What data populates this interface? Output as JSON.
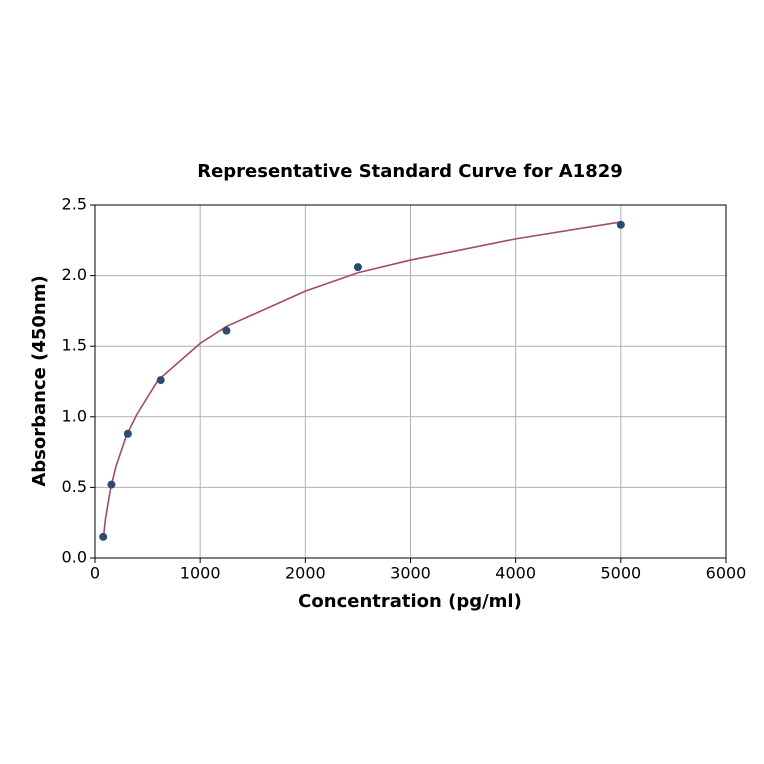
{
  "chart_data": {
    "type": "scatter",
    "title": "Representative Standard Curve for A1829",
    "x_label": "Concentration (pg/ml)",
    "y_label": "Absorbance (450nm)",
    "series": [
      {
        "color": "#2e4a6e",
        "x": [
          78.125,
          156.25,
          312.5,
          625,
          1250,
          2500,
          5000
        ],
        "values": [
          0.15,
          0.52,
          0.88,
          1.26,
          1.61,
          2.06,
          2.36
        ]
      }
    ],
    "curve": {
      "color": "#a3496b",
      "x": [
        78,
        100,
        150,
        200,
        300,
        400,
        600,
        1000,
        1250,
        2000,
        2500,
        3000,
        4000,
        5000
      ],
      "values": [
        0.13,
        0.28,
        0.5,
        0.65,
        0.87,
        1.02,
        1.26,
        1.52,
        1.64,
        1.89,
        2.02,
        2.11,
        2.26,
        2.38
      ]
    },
    "xlim": [
      0,
      6000
    ],
    "xticks": [
      0,
      1000,
      2000,
      3000,
      4000,
      5000,
      6000
    ],
    "ylim": [
      0,
      2.5
    ],
    "yticks": [
      {
        "value": 0,
        "label": "0.0"
      },
      {
        "value": 0.5,
        "label": "0.5"
      },
      {
        "value": 1,
        "label": "1.0"
      },
      {
        "value": 1.5,
        "label": "1.5"
      },
      {
        "value": 2,
        "label": "2.0"
      },
      {
        "value": 2.5,
        "label": "2.5"
      }
    ],
    "grid": true
  }
}
